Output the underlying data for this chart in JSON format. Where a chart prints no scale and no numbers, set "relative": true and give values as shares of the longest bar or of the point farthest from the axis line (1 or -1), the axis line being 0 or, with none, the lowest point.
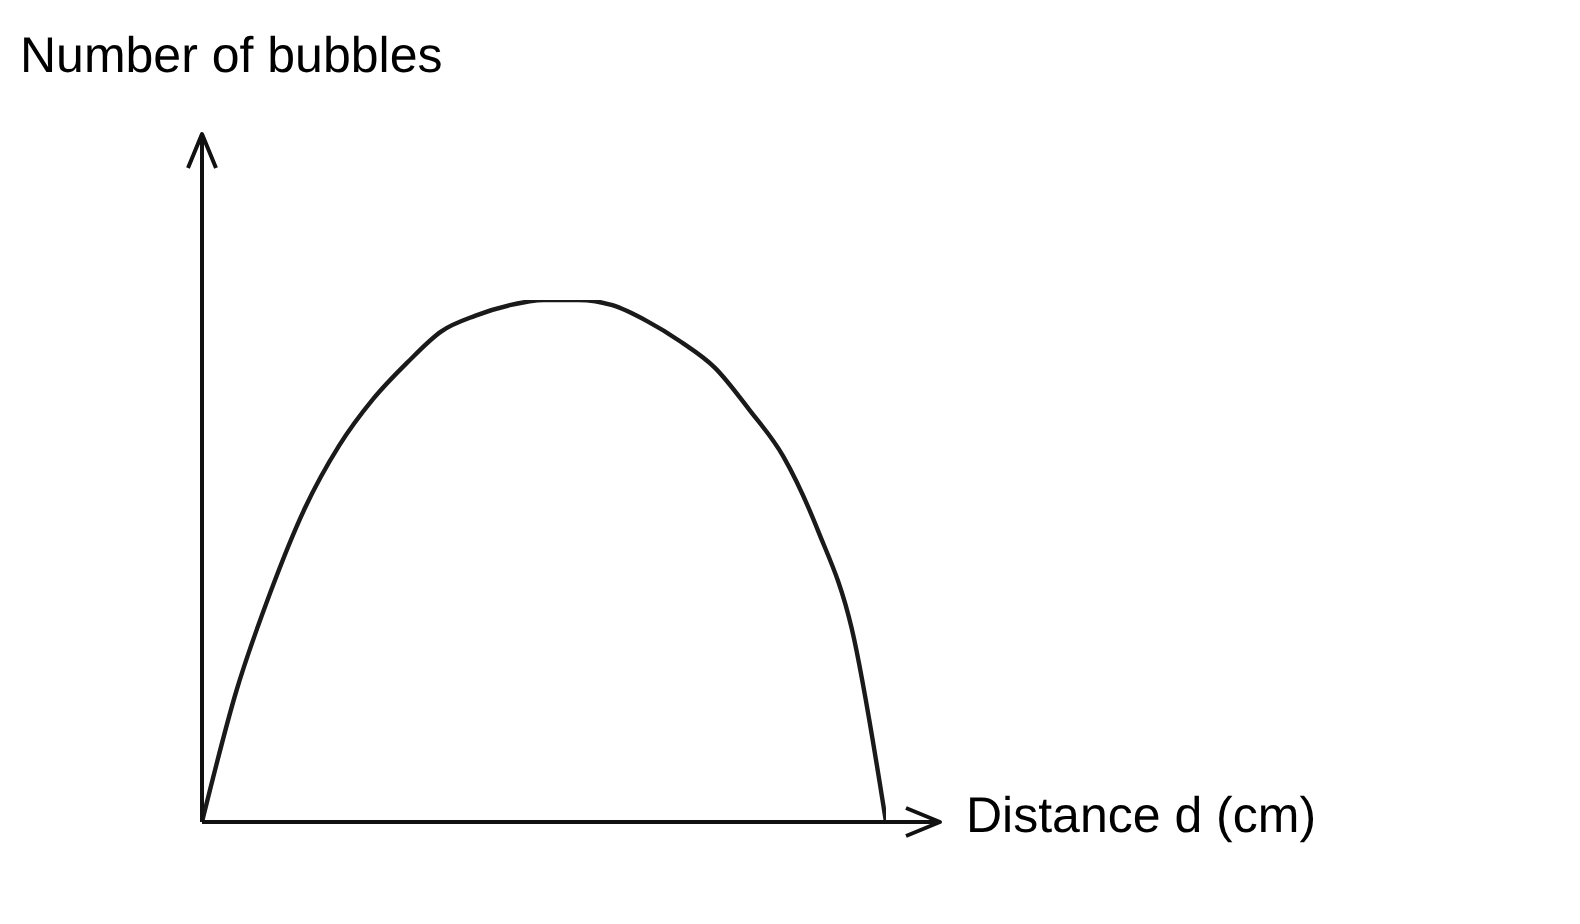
{
  "chart_data": {
    "type": "line",
    "relative": true,
    "xlabel": "Distance d (cm)",
    "ylabel": "Number of bubbles",
    "categories": [
      null,
      null,
      null,
      null,
      null,
      null,
      null,
      null,
      null,
      null,
      null,
      null,
      null,
      null,
      null,
      null,
      null,
      null,
      null,
      null,
      null
    ],
    "series": [
      {
        "color": "#1a1a1a",
        "values": [
          0,
          0.25,
          0.44,
          0.6,
          0.72,
          0.81,
          0.88,
          0.94,
          0.97,
          0.99,
          1,
          1,
          0.99,
          0.96,
          0.92,
          0.87,
          0.79,
          0.7,
          0.56,
          0.37,
          0
        ]
      }
    ],
    "grid": false,
    "legend": false,
    "marker": "none",
    "line_style": "solid"
  }
}
